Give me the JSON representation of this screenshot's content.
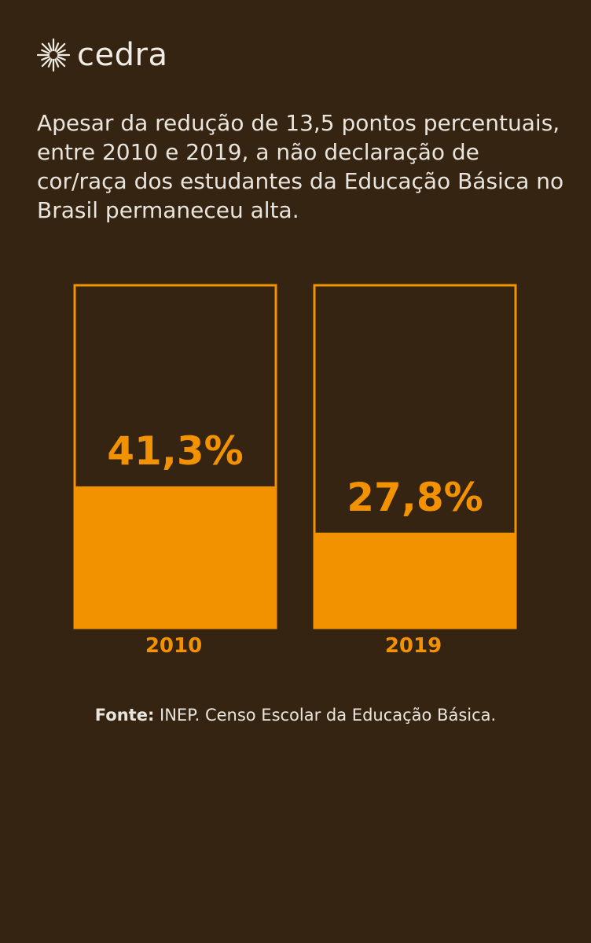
{
  "brand": {
    "name": "cedra",
    "icon": "sun-icon"
  },
  "headline": "Apesar da redução de 13,5 pontos percentuais, entre 2010 e 2019, a não declaração de cor/raça dos estudantes da Educação Básica no Brasil permaneceu alta.",
  "source": {
    "label": "Fonte:",
    "text": " INEP. Censo Escolar da Educação Básica."
  },
  "colors": {
    "background": "#352411",
    "accent": "#f39200",
    "text": "#e9e5de"
  },
  "chart_data": {
    "type": "bar",
    "categories": [
      "2010",
      "2019"
    ],
    "values": [
      41.3,
      27.8
    ],
    "value_labels": [
      "41,3%",
      "27,8%"
    ],
    "ylim": [
      0,
      100
    ],
    "title": "",
    "xlabel": "",
    "ylabel": ""
  }
}
